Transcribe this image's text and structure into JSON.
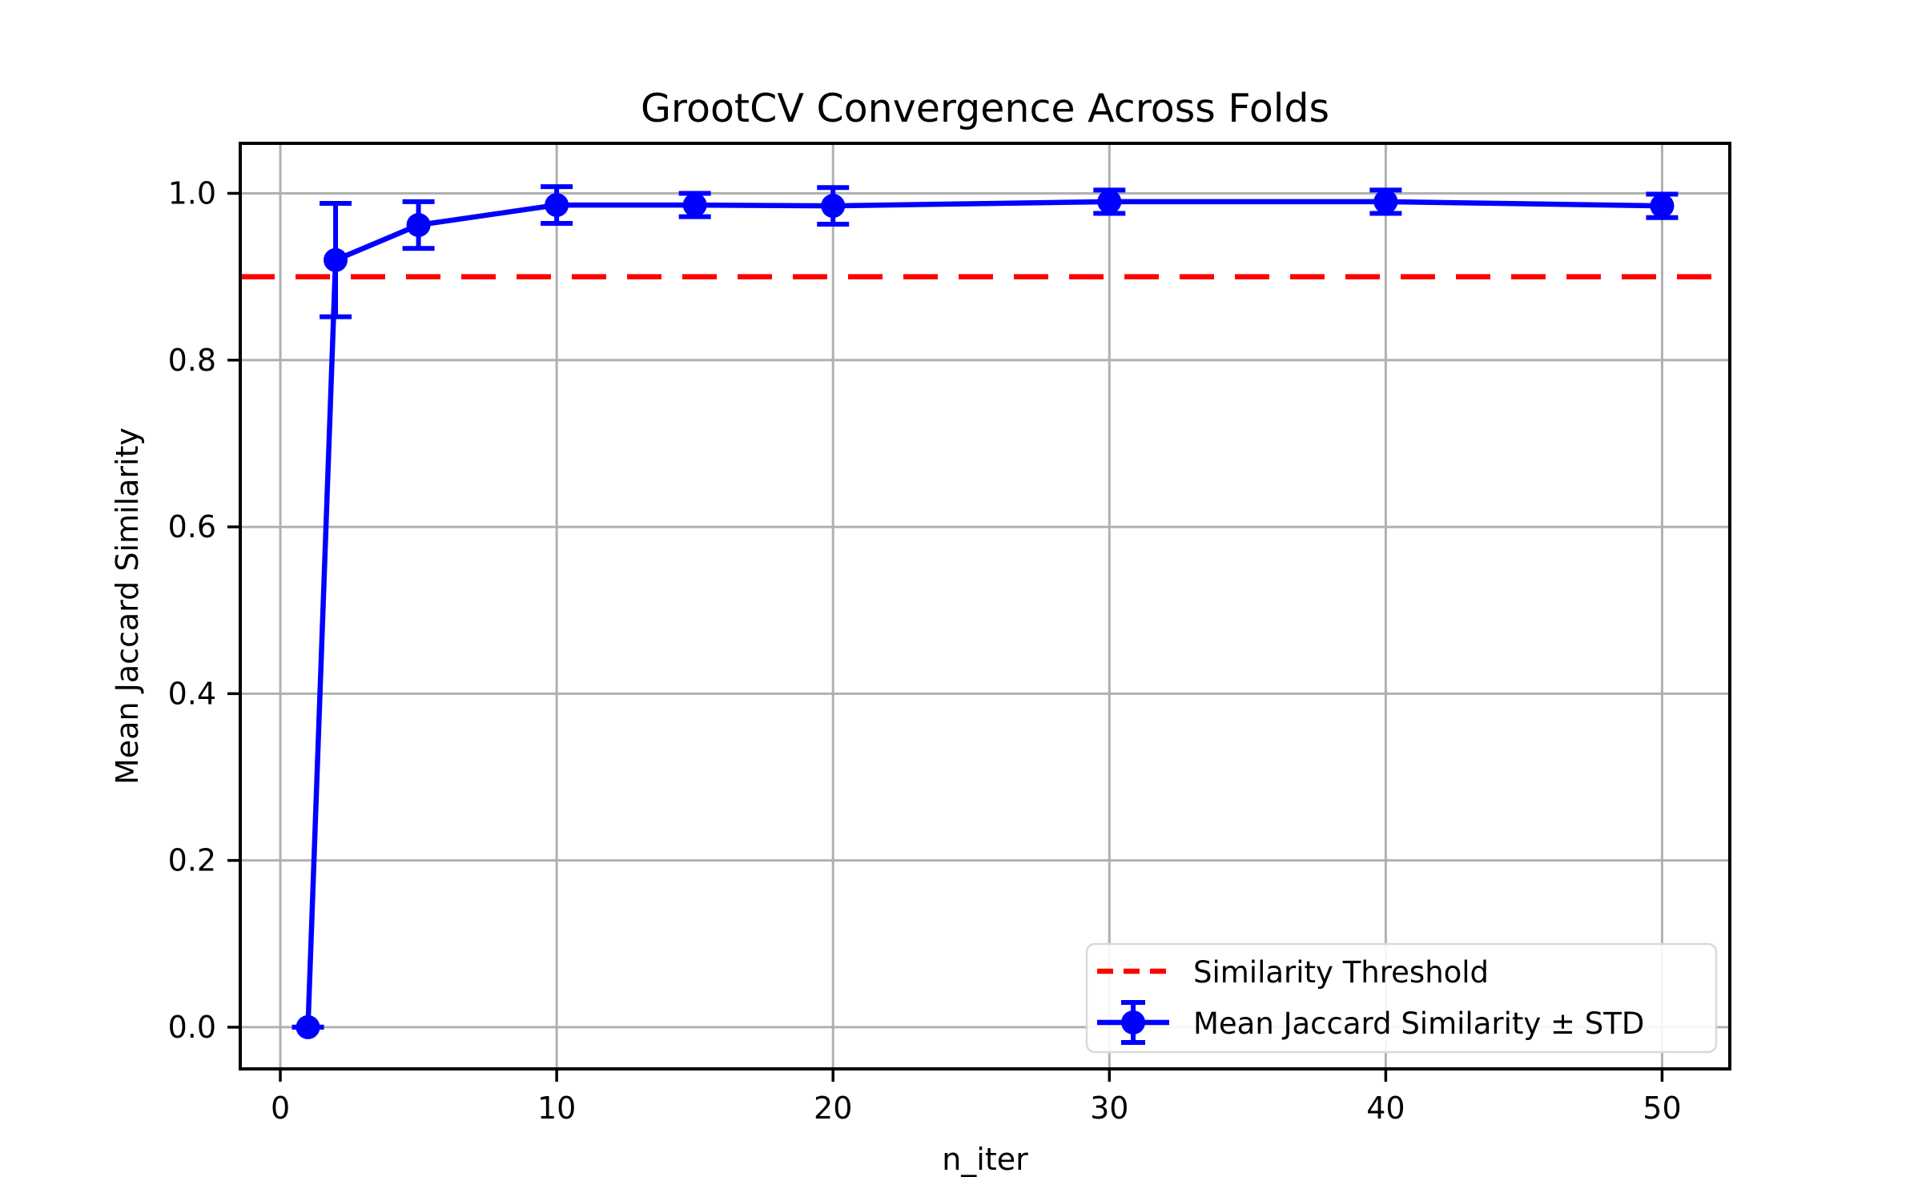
{
  "figure": {
    "background": "#ffffff"
  },
  "chart_data": {
    "type": "line",
    "title": "GrootCV Convergence Across Folds",
    "xlabel": "n_iter",
    "ylabel": "Mean Jaccard Similarity",
    "x": [
      1,
      2,
      5,
      10,
      15,
      20,
      30,
      40,
      50
    ],
    "series": [
      {
        "name": "Mean Jaccard Similarity ± STD",
        "values": [
          0.0,
          0.92,
          0.962,
          0.986,
          0.986,
          0.985,
          0.99,
          0.99,
          0.985
        ],
        "std": [
          0.0,
          0.068,
          0.028,
          0.022,
          0.014,
          0.022,
          0.014,
          0.014,
          0.014
        ],
        "color": "#0000ff",
        "marker": "circle",
        "linestyle": "solid"
      }
    ],
    "threshold": {
      "label": "Similarity Threshold",
      "value": 0.9,
      "color": "#ff0000",
      "linestyle": "dashed"
    },
    "xlim": [
      -1.45,
      52.45
    ],
    "ylim": [
      -0.05,
      1.06
    ],
    "xticks": [
      0,
      10,
      20,
      30,
      40,
      50
    ],
    "xtick_labels": [
      "0",
      "10",
      "20",
      "30",
      "40",
      "50"
    ],
    "yticks": [
      0.0,
      0.2,
      0.4,
      0.6,
      0.8,
      1.0
    ],
    "ytick_labels": [
      "0.0",
      "0.2",
      "0.4",
      "0.6",
      "0.8",
      "1.0"
    ],
    "grid": true,
    "grid_color": "#b0b0b0",
    "axis_color": "#000000",
    "legend": {
      "position": "lower right",
      "entries": [
        {
          "label": "Similarity Threshold",
          "glyph": "dashed-line",
          "color": "#ff0000"
        },
        {
          "label": "Mean Jaccard Similarity ± STD",
          "glyph": "errorbar",
          "color": "#0000ff"
        }
      ]
    }
  }
}
